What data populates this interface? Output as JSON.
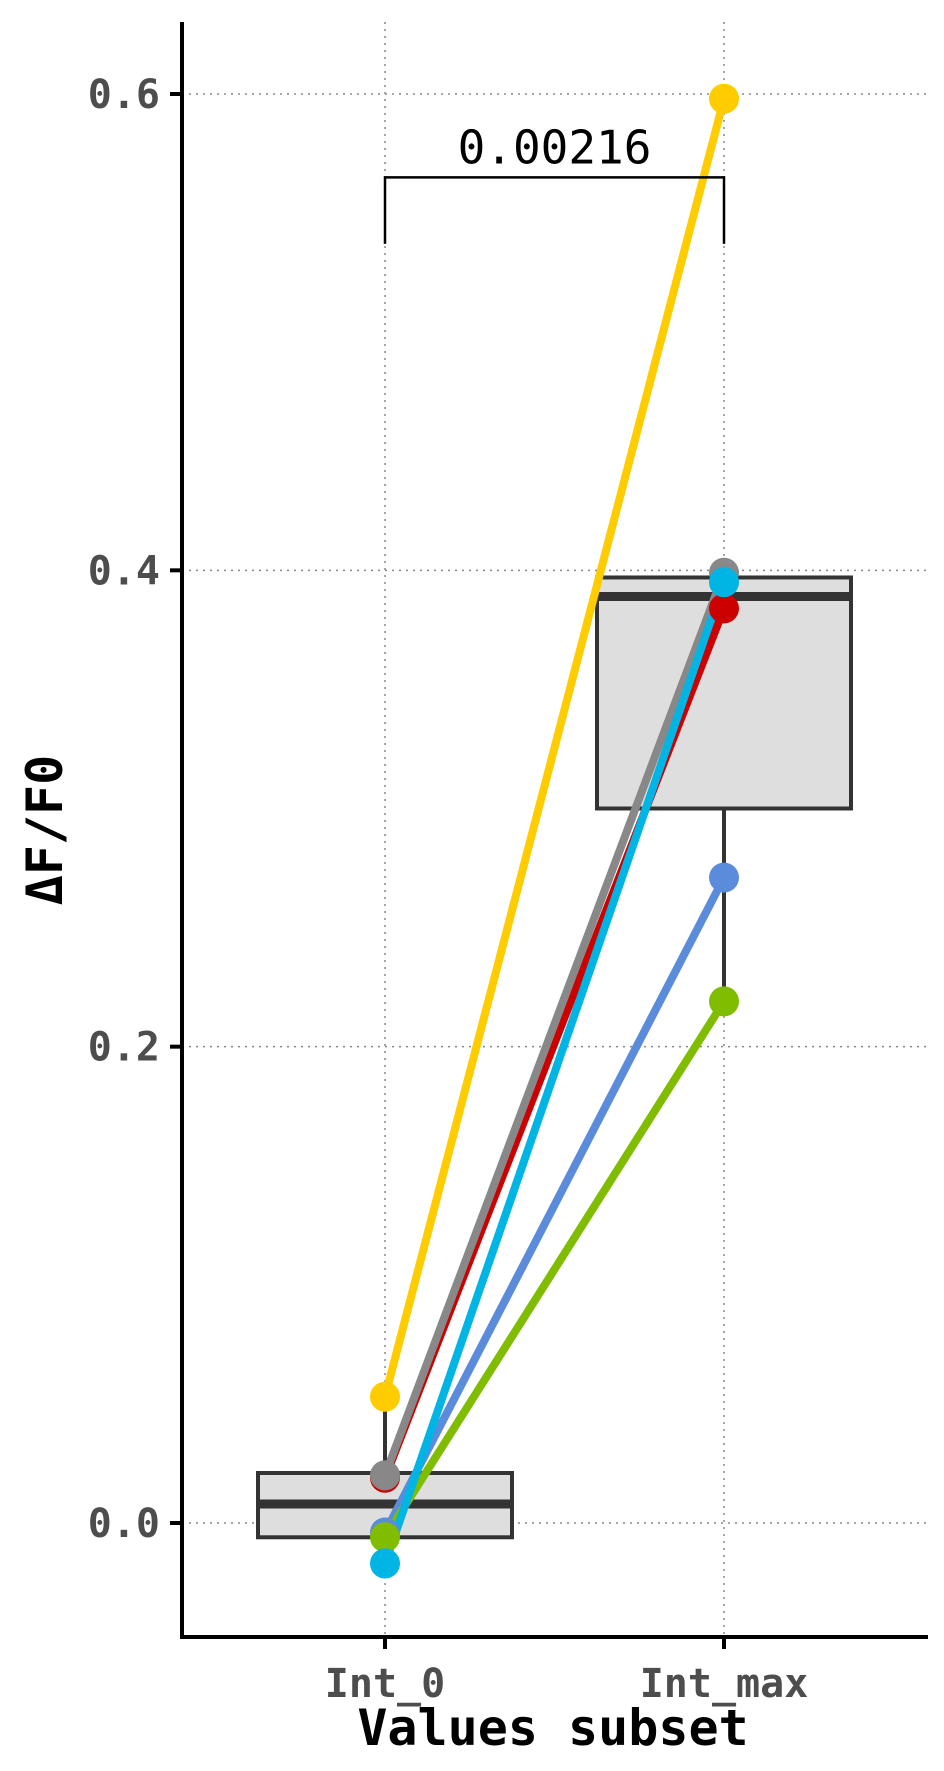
{
  "chart_data": {
    "type": "boxplot_paired",
    "xlabel": "Values subset",
    "ylabel": "ΔF/F0",
    "categories": [
      "Int_0",
      "Int_max"
    ],
    "yticks": [
      0.0,
      0.2,
      0.4,
      0.6
    ],
    "ytick_labels": [
      "0.0",
      "0.2",
      "0.4",
      "0.6"
    ],
    "ylim": [
      -0.045,
      0.63
    ],
    "grid": true,
    "boxes": [
      {
        "category": "Int_0",
        "q1": -0.006,
        "median": 0.008,
        "q3": 0.021,
        "whisker_low": -0.017,
        "whisker_high": 0.053
      },
      {
        "category": "Int_max",
        "q1": 0.3,
        "median": 0.389,
        "q3": 0.397,
        "whisker_low": 0.22,
        "whisker_high": 0.397
      }
    ],
    "series": [
      {
        "color": "#FFCC00",
        "values": [
          0.053,
          0.598
        ]
      },
      {
        "color": "#CC0000",
        "values": [
          0.019,
          0.384
        ]
      },
      {
        "color": "#5B8BDB",
        "values": [
          -0.004,
          0.271
        ]
      },
      {
        "color": "#80BC00",
        "values": [
          -0.006,
          0.219
        ]
      },
      {
        "color": "#888888",
        "values": [
          0.02,
          0.399
        ]
      },
      {
        "color": "#00B4E4",
        "values": [
          -0.017,
          0.395
        ]
      }
    ],
    "significance": {
      "label": "0.00216",
      "from": "Int_0",
      "to": "Int_max",
      "y": 0.565,
      "tip_y": 0.548
    },
    "box_fill": "#DEDEDE",
    "box_stroke": "#333333"
  }
}
